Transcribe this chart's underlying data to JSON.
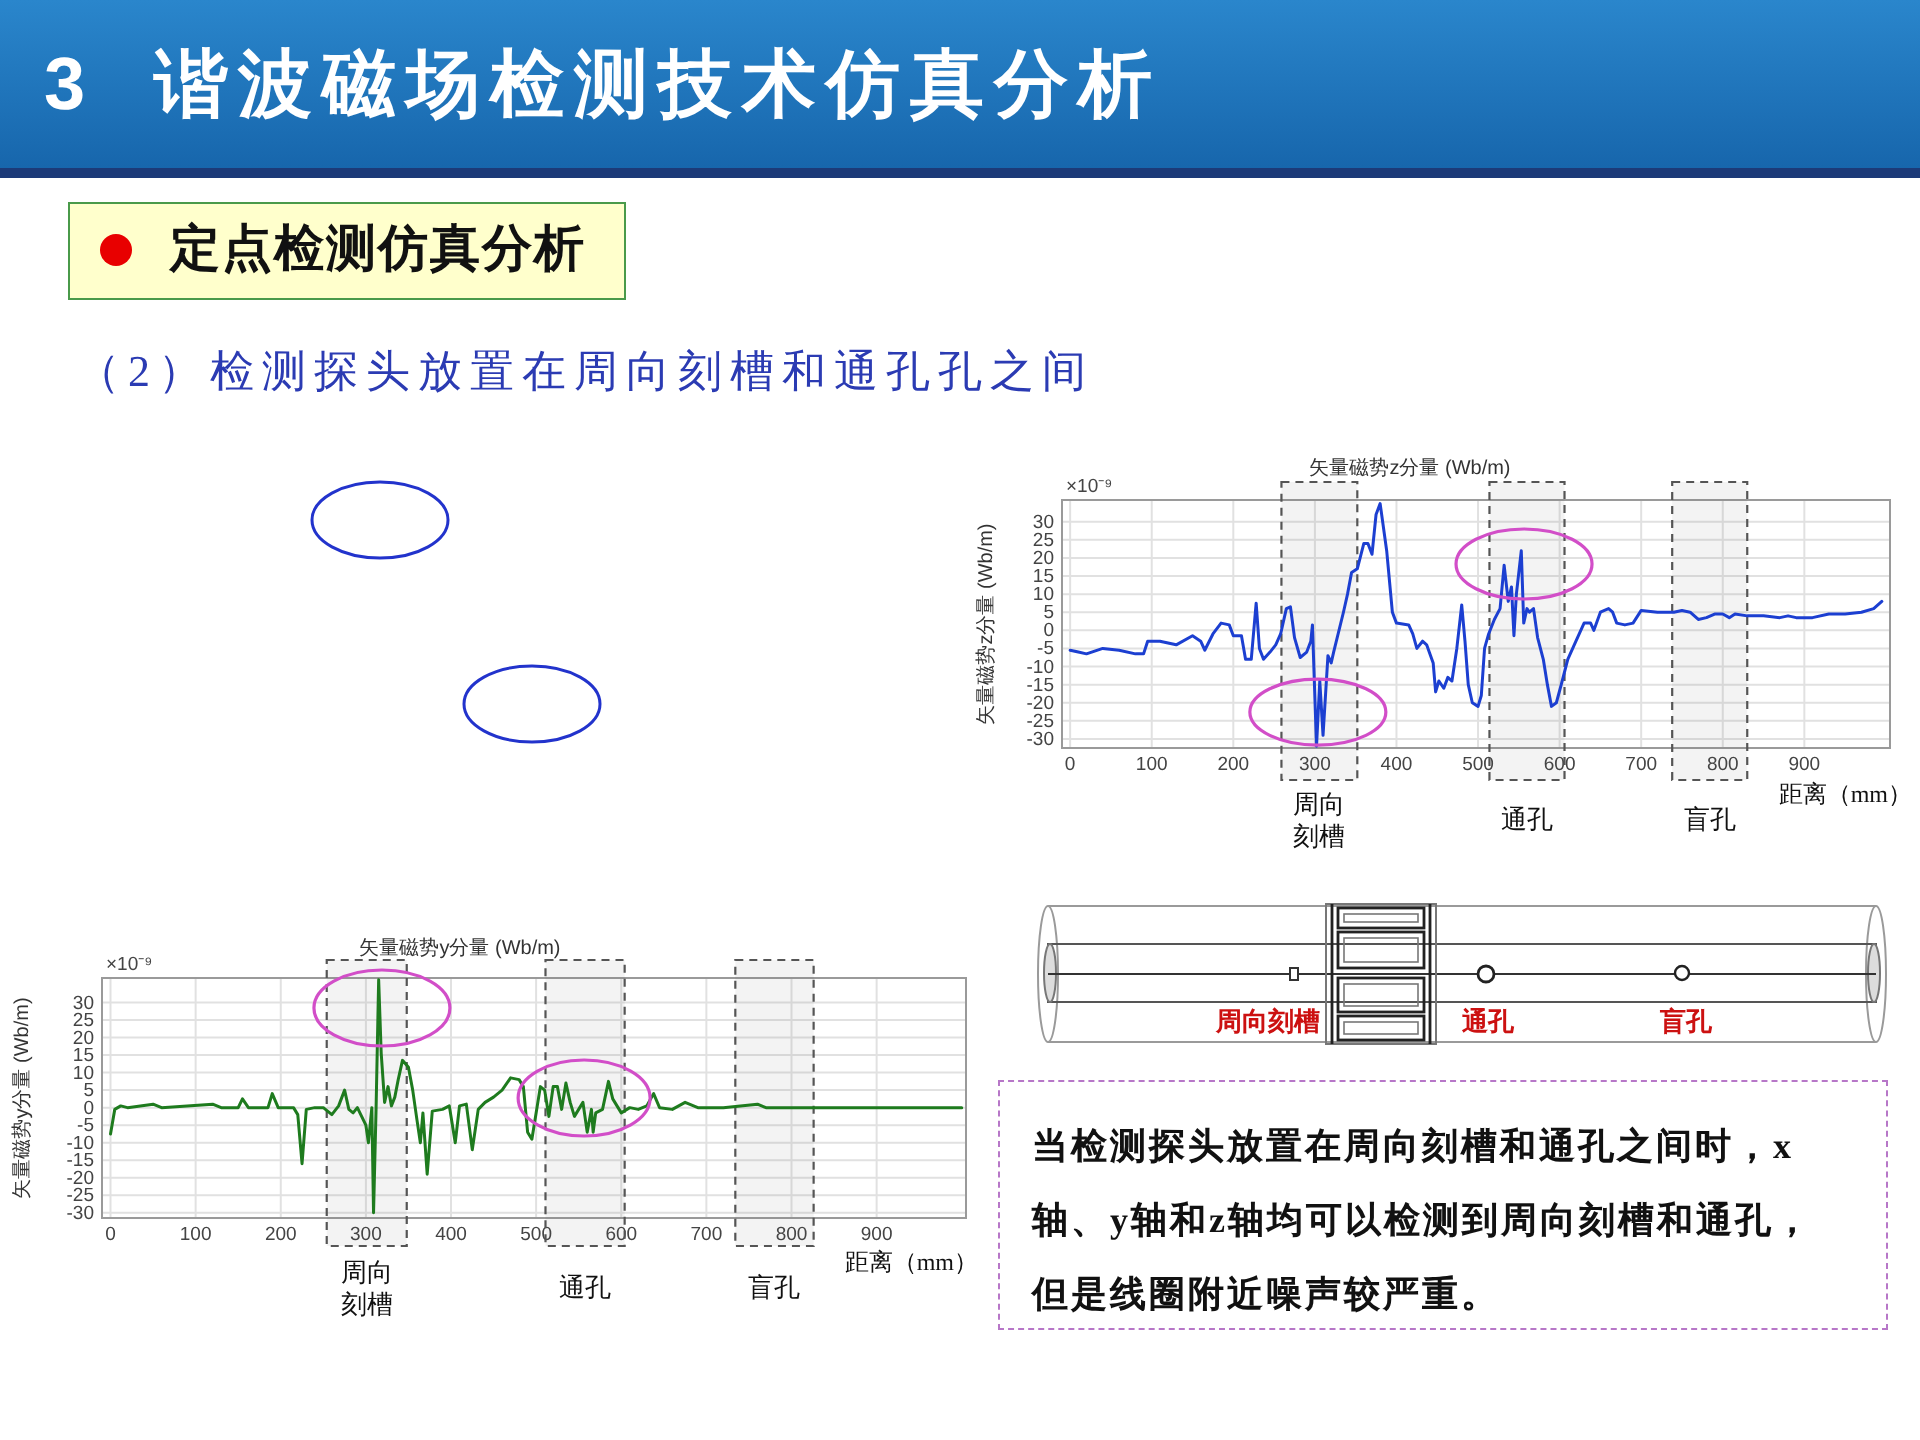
{
  "chart_data": [
    {
      "type": "other",
      "title": "3 谐波磁场检测技术仿真分析",
      "subtitle": "定点检测仿真分析",
      "annotations": [
        "（2）检测探头放置在周向刻槽和通孔孔之间"
      ]
    },
    {
      "type": "line",
      "title": "矢量磁势z分量 (Wb/m)",
      "ylabel": "矢量磁势z分量 (Wb/m)",
      "xlabel": "距离（mm）",
      "annotations": [
        "×10⁻⁹"
      ],
      "x": [
        0,
        10,
        20,
        40,
        60,
        80,
        90,
        95,
        110,
        120,
        130,
        150,
        160,
        165,
        175,
        185,
        195,
        200,
        210,
        215,
        222,
        228,
        232,
        237,
        245,
        252,
        258,
        265,
        270,
        275,
        282,
        290,
        295,
        297,
        302,
        306,
        310,
        316,
        320,
        323,
        335,
        340,
        345,
        352,
        360,
        365,
        370,
        375,
        380,
        388,
        395,
        400,
        415,
        420,
        425,
        432,
        437,
        445,
        448,
        452,
        458,
        463,
        468,
        474,
        480,
        484,
        488,
        493,
        500,
        504,
        508,
        513,
        520,
        527,
        532,
        537,
        541,
        544,
        547,
        553,
        556,
        560,
        563,
        568,
        573,
        580,
        585,
        590,
        596,
        602,
        610,
        620,
        630,
        638,
        642,
        650,
        660,
        665,
        670,
        680,
        690,
        700,
        720,
        740,
        750,
        760,
        770,
        780,
        790,
        800,
        808,
        815,
        830,
        850,
        870,
        880,
        890,
        910,
        930,
        950,
        970,
        985,
        995
      ],
      "series": [
        {
          "color": "#1c3fd1",
          "values": [
            -5.5,
            -6,
            -6.5,
            -5,
            -5.5,
            -6.5,
            -6.5,
            -3,
            -3,
            -3.5,
            -4,
            -1.5,
            -3,
            -5.5,
            -1,
            2,
            1.5,
            -1.5,
            -1.5,
            -8,
            -8,
            7.5,
            -5,
            -8,
            -6,
            -4,
            -1,
            6,
            6.5,
            -2,
            -7.5,
            -6,
            -3,
            1.5,
            -32,
            -14,
            -29,
            -7,
            -9,
            -6,
            5,
            10,
            16,
            17,
            24,
            24,
            21,
            32,
            35,
            22,
            5,
            2,
            1.5,
            -1,
            -5,
            -3,
            -4,
            -9,
            -17,
            -14,
            -16,
            -13,
            -14,
            -5,
            7,
            -3,
            -15,
            -20,
            -21,
            -18,
            -5,
            -1,
            3,
            6,
            18,
            8,
            12,
            -1.5,
            10,
            22,
            2,
            6,
            5,
            6,
            -2,
            -8,
            -15,
            -21,
            -20,
            -15,
            -8,
            -3,
            2,
            2,
            0,
            5,
            6,
            5,
            2,
            1.5,
            2,
            5.5,
            5,
            5,
            5.5,
            5,
            3,
            3.5,
            4.5,
            4.5,
            3.5,
            4.5,
            4,
            4,
            3.5,
            4,
            3.5,
            3.5,
            4.5,
            4.5,
            5,
            6,
            8
          ]
        }
      ],
      "xlim": [
        -10,
        1005
      ],
      "xticks": [
        0,
        100,
        200,
        300,
        400,
        500,
        600,
        700,
        800,
        900
      ],
      "ylim": [
        -32.5,
        36
      ],
      "yticks": [
        -30,
        -25,
        -20,
        -15,
        -10,
        -5,
        0,
        5,
        10,
        15,
        20,
        25,
        30
      ],
      "grid": true,
      "bands": [
        {
          "axis": "x",
          "from": 259,
          "to": 352,
          "label": "周向刻槽",
          "color": "#555555"
        },
        {
          "axis": "x",
          "from": 514,
          "to": 606,
          "label": "通孔",
          "color": "#555555"
        },
        {
          "axis": "x",
          "from": 738,
          "to": 830,
          "label": "盲孔",
          "color": "#555555"
        }
      ]
    },
    {
      "type": "line",
      "title": "矢量磁势y分量 (Wb/m)",
      "ylabel": "矢量磁势y分量 (Wb/m)",
      "xlabel": "距离（mm）",
      "annotations": [
        "×10⁻⁹"
      ],
      "x": [
        0,
        5,
        12,
        20,
        50,
        60,
        120,
        130,
        150,
        155,
        162,
        185,
        190,
        197,
        215,
        220,
        225,
        230,
        240,
        250,
        260,
        268,
        275,
        280,
        285,
        290,
        295,
        300,
        303,
        307,
        309,
        312,
        315,
        318,
        322,
        326,
        330,
        334,
        338,
        343,
        350,
        355,
        360,
        364,
        367,
        372,
        378,
        390,
        398,
        405,
        410,
        418,
        425,
        432,
        440,
        450,
        460,
        470,
        480,
        485,
        490,
        495,
        500,
        505,
        510,
        515,
        520,
        525,
        530,
        535,
        540,
        545,
        550,
        555,
        560,
        565,
        567,
        570,
        578,
        585,
        590,
        600,
        610,
        620,
        630,
        638,
        645,
        660,
        675,
        690,
        720,
        760,
        770,
        850,
        1000
      ],
      "series": [
        {
          "color": "#1e7b1e",
          "values": [
            -7.5,
            -0.5,
            0.5,
            0,
            1,
            0,
            1,
            0,
            0,
            2.5,
            0,
            0,
            4,
            0,
            0,
            -2,
            -16,
            -0.5,
            0,
            0,
            -2,
            0.5,
            5,
            -0.5,
            -1.5,
            0,
            -2.5,
            -5,
            -10,
            0,
            -30,
            0,
            36.5,
            15.5,
            1.5,
            6,
            0.5,
            3,
            8,
            13.5,
            11.5,
            5,
            -3.5,
            -10,
            -1.5,
            -19,
            -1,
            -0.5,
            0.5,
            -10,
            0.5,
            1,
            -12,
            -0.5,
            1.5,
            3,
            5,
            8.5,
            8,
            6,
            -7,
            -9,
            -1.5,
            6,
            5,
            -2.5,
            6,
            6,
            -0.5,
            7,
            1.5,
            -2.5,
            -0.5,
            1.5,
            -7,
            -0.5,
            -7,
            -1.5,
            -0.5,
            7.5,
            2.5,
            -1.5,
            0,
            -0.5,
            0.5,
            4,
            0,
            -0.5,
            1.5,
            0,
            0,
            1,
            0,
            0,
            0
          ]
        }
      ],
      "xlim": [
        -10,
        1005
      ],
      "xticks": [
        0,
        100,
        200,
        300,
        400,
        500,
        600,
        700,
        800,
        900
      ],
      "ylim": [
        -31.5,
        37
      ],
      "yticks": [
        -30,
        -25,
        -20,
        -15,
        -10,
        -5,
        0,
        5,
        10,
        15,
        20,
        25,
        30
      ],
      "grid": true,
      "bands": [
        {
          "axis": "x",
          "from": 254,
          "to": 348,
          "label": "周向刻槽",
          "color": "#555555"
        },
        {
          "axis": "x",
          "from": 511,
          "to": 604,
          "label": "通孔",
          "color": "#555555"
        },
        {
          "axis": "x",
          "from": 734,
          "to": 826,
          "label": "盲孔",
          "color": "#555555"
        }
      ]
    },
    {
      "type": "other",
      "annotations": [
        "周向刻槽",
        "通孔",
        "盲孔",
        "当检测探头放置在周向刻槽和通孔之间时，x轴、y轴和z轴均可以检测到周向刻槽和通孔，但是线圈附近噪声较严重。"
      ]
    }
  ]
}
